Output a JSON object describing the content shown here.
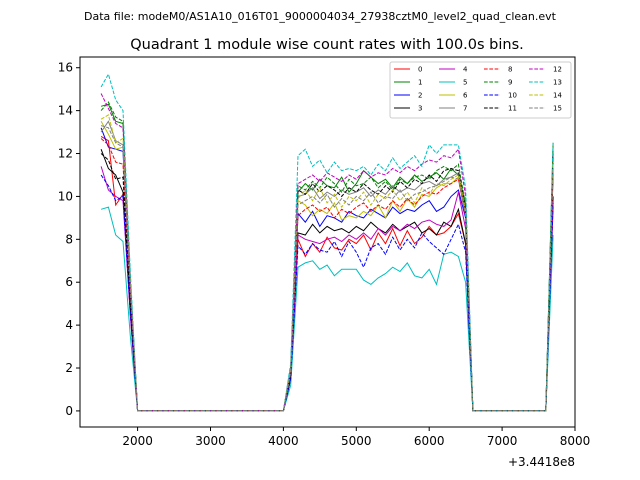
{
  "chart_data": {
    "type": "line",
    "suptitle": "Data file: modeM0/AS1A10_016T01_9000004034_27938cztM0_level2_quad_clean.evt",
    "title": "Quadrant 1 module wise count rates with 100.0s bins.",
    "xlabel": "",
    "ylabel": "",
    "x_offset_label": "+3.4418e8",
    "xlim": [
      1210,
      8000
    ],
    "ylim": [
      -0.75,
      16.5
    ],
    "xticks": [
      2000,
      3000,
      4000,
      5000,
      6000,
      7000,
      8000
    ],
    "yticks": [
      0,
      2,
      4,
      6,
      8,
      10,
      12,
      14,
      16
    ],
    "x": [
      1500,
      1600,
      1700,
      1800,
      1900,
      2000,
      2100,
      2200,
      2300,
      2400,
      2500,
      2600,
      2700,
      2800,
      2900,
      3000,
      3100,
      3200,
      3300,
      3400,
      3500,
      3600,
      3700,
      3800,
      3900,
      4000,
      4100,
      4200,
      4300,
      4400,
      4500,
      4600,
      4700,
      4800,
      4900,
      5000,
      5100,
      5200,
      5300,
      5400,
      5500,
      5600,
      5700,
      5800,
      5900,
      6000,
      6100,
      6200,
      6300,
      6400,
      6500,
      6600,
      6700,
      6800,
      6900,
      7000,
      7100,
      7200,
      7300,
      7400,
      7500,
      7600,
      7700
    ],
    "legend": {
      "placement": "top-right",
      "ncol": 4
    },
    "series": [
      {
        "name": "0",
        "color": "#ff0000",
        "dash": "solid",
        "values": [
          12.8,
          12.6,
          9.6,
          10.1,
          4.5,
          0,
          0,
          0,
          0,
          0,
          0,
          0,
          0,
          0,
          0,
          0,
          0,
          0,
          0,
          0,
          0,
          0,
          0,
          0,
          0,
          0,
          1.5,
          8.0,
          7.2,
          7.8,
          7.4,
          8.1,
          7.6,
          7.5,
          8.0,
          7.8,
          8.2,
          7.5,
          8.3,
          7.8,
          8.5,
          7.7,
          8.4,
          7.8,
          8.1,
          8.6,
          8.2,
          8.3,
          8.6,
          9.2,
          7.8,
          0,
          0,
          0,
          0,
          0,
          0,
          0,
          0,
          0,
          0,
          0,
          9.5
        ]
      },
      {
        "name": "1",
        "color": "#008000",
        "dash": "solid",
        "values": [
          14.2,
          14.3,
          13.5,
          13.4,
          6.0,
          0,
          0,
          0,
          0,
          0,
          0,
          0,
          0,
          0,
          0,
          0,
          0,
          0,
          0,
          0,
          0,
          0,
          0,
          0,
          0,
          0,
          2.0,
          10.2,
          10.6,
          10.3,
          10.8,
          10.5,
          10.4,
          10.9,
          10.2,
          10.6,
          11.2,
          10.9,
          10.6,
          10.8,
          10.4,
          10.9,
          10.6,
          11.0,
          10.7,
          10.9,
          11.1,
          10.8,
          11.3,
          11.0,
          9.6,
          0,
          0,
          0,
          0,
          0,
          0,
          0,
          0,
          0,
          0,
          0,
          12.5
        ]
      },
      {
        "name": "2",
        "color": "#0000ff",
        "dash": "solid",
        "values": [
          13.2,
          12.3,
          12.2,
          12.1,
          5.5,
          0,
          0,
          0,
          0,
          0,
          0,
          0,
          0,
          0,
          0,
          0,
          0,
          0,
          0,
          0,
          0,
          0,
          0,
          0,
          0,
          0,
          1.8,
          9.2,
          8.8,
          9.3,
          8.6,
          9.1,
          9.0,
          8.8,
          9.3,
          9.1,
          9.0,
          9.4,
          9.2,
          9.0,
          9.5,
          9.2,
          9.4,
          9.3,
          9.6,
          9.8,
          9.3,
          9.5,
          10.0,
          10.3,
          9.0,
          0,
          0,
          0,
          0,
          0,
          0,
          0,
          0,
          0,
          0,
          0,
          11.0
        ]
      },
      {
        "name": "3",
        "color": "#000000",
        "dash": "solid",
        "values": [
          12.2,
          11.3,
          11.0,
          10.2,
          4.7,
          0,
          0,
          0,
          0,
          0,
          0,
          0,
          0,
          0,
          0,
          0,
          0,
          0,
          0,
          0,
          0,
          0,
          0,
          0,
          0,
          0,
          1.5,
          8.3,
          8.2,
          8.7,
          8.3,
          8.6,
          8.4,
          8.5,
          8.3,
          8.6,
          8.4,
          8.8,
          8.5,
          8.3,
          8.7,
          8.4,
          8.6,
          8.8,
          8.3,
          8.5,
          8.2,
          8.8,
          8.6,
          9.4,
          7.8,
          0,
          0,
          0,
          0,
          0,
          0,
          0,
          0,
          0,
          0,
          0,
          10.0
        ]
      },
      {
        "name": "4",
        "color": "#c000c0",
        "dash": "solid",
        "values": [
          11.4,
          10.3,
          10.0,
          9.8,
          4.5,
          0,
          0,
          0,
          0,
          0,
          0,
          0,
          0,
          0,
          0,
          0,
          0,
          0,
          0,
          0,
          0,
          0,
          0,
          0,
          0,
          0,
          1.5,
          8.2,
          8.0,
          7.9,
          7.8,
          8.0,
          8.1,
          7.9,
          8.2,
          8.0,
          8.3,
          8.0,
          8.5,
          8.2,
          8.6,
          8.4,
          8.7,
          8.5,
          8.8,
          8.9,
          8.7,
          8.6,
          8.9,
          10.2,
          8.5,
          0,
          0,
          0,
          0,
          0,
          0,
          0,
          0,
          0,
          0,
          0,
          9.8
        ]
      },
      {
        "name": "5",
        "color": "#00bfbf",
        "dash": "solid",
        "values": [
          9.4,
          9.5,
          8.2,
          7.9,
          3.5,
          0,
          0,
          0,
          0,
          0,
          0,
          0,
          0,
          0,
          0,
          0,
          0,
          0,
          0,
          0,
          0,
          0,
          0,
          0,
          0,
          0,
          1.2,
          6.7,
          6.9,
          7.0,
          6.6,
          6.8,
          6.3,
          6.6,
          6.6,
          6.6,
          6.1,
          5.9,
          6.2,
          6.4,
          6.7,
          6.5,
          6.9,
          6.3,
          6.2,
          6.6,
          5.9,
          7.3,
          7.4,
          7.2,
          6.0,
          0,
          0,
          0,
          0,
          0,
          0,
          0,
          0,
          0,
          0,
          0,
          8.2
        ]
      },
      {
        "name": "6",
        "color": "#bfbf00",
        "dash": "solid",
        "values": [
          13.5,
          12.9,
          12.2,
          12.3,
          5.8,
          0,
          0,
          0,
          0,
          0,
          0,
          0,
          0,
          0,
          0,
          0,
          0,
          0,
          0,
          0,
          0,
          0,
          0,
          0,
          0,
          0,
          1.9,
          9.8,
          9.6,
          9.1,
          9.4,
          9.2,
          9.7,
          8.9,
          9.1,
          9.0,
          9.3,
          9.1,
          9.6,
          9.0,
          9.8,
          9.3,
          9.9,
          9.5,
          10.1,
          10.0,
          10.4,
          10.6,
          10.6,
          10.9,
          9.2,
          0,
          0,
          0,
          0,
          0,
          0,
          0,
          0,
          0,
          0,
          0,
          11.5
        ]
      },
      {
        "name": "7",
        "color": "#808080",
        "dash": "solid",
        "values": [
          13.0,
          13.5,
          12.6,
          12.4,
          5.6,
          0,
          0,
          0,
          0,
          0,
          0,
          0,
          0,
          0,
          0,
          0,
          0,
          0,
          0,
          0,
          0,
          0,
          0,
          0,
          0,
          0,
          1.9,
          10.0,
          10.1,
          10.4,
          9.9,
          10.2,
          10.0,
          10.3,
          10.1,
          10.2,
          10.4,
          10.0,
          10.3,
          10.1,
          10.5,
          10.2,
          10.4,
          10.3,
          10.6,
          10.7,
          10.5,
          10.8,
          10.9,
          11.1,
          9.3,
          0,
          0,
          0,
          0,
          0,
          0,
          0,
          0,
          0,
          0,
          0,
          11.8
        ]
      },
      {
        "name": "8",
        "color": "#ff0000",
        "dash": "dashed",
        "values": [
          12.7,
          12.4,
          11.6,
          11.5,
          5.2,
          0,
          0,
          0,
          0,
          0,
          0,
          0,
          0,
          0,
          0,
          0,
          0,
          0,
          0,
          0,
          0,
          0,
          0,
          0,
          0,
          0,
          1.7,
          9.1,
          9.4,
          9.6,
          9.3,
          9.5,
          9.0,
          9.4,
          9.2,
          9.5,
          9.7,
          9.3,
          9.6,
          9.4,
          9.8,
          9.5,
          9.9,
          9.6,
          10.0,
          10.2,
          10.1,
          10.4,
          10.6,
          10.8,
          9.1,
          0,
          0,
          0,
          0,
          0,
          0,
          0,
          0,
          0,
          0,
          0,
          11.2
        ]
      },
      {
        "name": "9",
        "color": "#008000",
        "dash": "dashed",
        "values": [
          14.0,
          14.4,
          13.7,
          13.5,
          6.1,
          0,
          0,
          0,
          0,
          0,
          0,
          0,
          0,
          0,
          0,
          0,
          0,
          0,
          0,
          0,
          0,
          0,
          0,
          0,
          0,
          0,
          2.0,
          10.5,
          10.3,
          10.7,
          10.4,
          10.9,
          10.6,
          10.2,
          10.8,
          10.5,
          10.6,
          10.9,
          10.4,
          10.7,
          10.3,
          10.8,
          10.6,
          10.9,
          11.0,
          10.8,
          11.2,
          11.4,
          11.2,
          11.5,
          9.6,
          0,
          0,
          0,
          0,
          0,
          0,
          0,
          0,
          0,
          0,
          0,
          12.3
        ]
      },
      {
        "name": "10",
        "color": "#0000ff",
        "dash": "dashed",
        "values": [
          11.0,
          10.5,
          9.8,
          10.0,
          4.6,
          0,
          0,
          0,
          0,
          0,
          0,
          0,
          0,
          0,
          0,
          0,
          0,
          0,
          0,
          0,
          0,
          0,
          0,
          0,
          0,
          0,
          1.5,
          7.7,
          7.3,
          7.8,
          7.5,
          7.4,
          7.9,
          7.2,
          7.9,
          7.4,
          6.7,
          7.6,
          7.8,
          7.3,
          8.1,
          7.5,
          8.0,
          7.6,
          8.3,
          7.9,
          7.6,
          7.3,
          8.0,
          8.7,
          7.4,
          0,
          0,
          0,
          0,
          0,
          0,
          0,
          0,
          0,
          0,
          0,
          9.7
        ]
      },
      {
        "name": "11",
        "color": "#000000",
        "dash": "dashed",
        "values": [
          12.0,
          11.7,
          10.8,
          10.9,
          5.0,
          0,
          0,
          0,
          0,
          0,
          0,
          0,
          0,
          0,
          0,
          0,
          0,
          0,
          0,
          0,
          0,
          0,
          0,
          0,
          0,
          0,
          1.7,
          10.3,
          10.1,
          10.6,
          10.2,
          10.5,
          10.3,
          10.0,
          10.4,
          10.2,
          10.6,
          10.3,
          10.1,
          10.5,
          10.2,
          10.7,
          10.4,
          10.8,
          10.6,
          11.0,
          10.7,
          11.2,
          11.3,
          11.2,
          9.4,
          0,
          0,
          0,
          0,
          0,
          0,
          0,
          0,
          0,
          0,
          0,
          12.0
        ]
      },
      {
        "name": "12",
        "color": "#c000c0",
        "dash": "dashed",
        "values": [
          14.8,
          14.1,
          13.4,
          13.2,
          6.0,
          0,
          0,
          0,
          0,
          0,
          0,
          0,
          0,
          0,
          0,
          0,
          0,
          0,
          0,
          0,
          0,
          0,
          0,
          0,
          0,
          0,
          2.0,
          10.6,
          10.8,
          11.0,
          10.7,
          11.1,
          10.9,
          10.7,
          11.0,
          10.8,
          11.2,
          10.9,
          11.1,
          11.0,
          11.3,
          11.1,
          11.4,
          11.2,
          11.5,
          11.7,
          11.6,
          11.9,
          11.8,
          12.2,
          10.0,
          0,
          0,
          0,
          0,
          0,
          0,
          0,
          0,
          0,
          0,
          0,
          12.0
        ]
      },
      {
        "name": "13",
        "color": "#00bfbf",
        "dash": "dashed",
        "values": [
          15.1,
          15.7,
          14.5,
          14.0,
          6.5,
          0,
          0,
          0,
          0,
          0,
          0,
          0,
          0,
          0,
          0,
          0,
          0,
          0,
          0,
          0,
          0,
          0,
          0,
          0,
          0,
          0,
          2.2,
          11.9,
          12.2,
          11.4,
          11.7,
          11.1,
          11.6,
          11.2,
          11.3,
          11.2,
          11.4,
          11.0,
          11.5,
          11.2,
          11.8,
          11.3,
          11.6,
          11.9,
          11.4,
          12.4,
          12.0,
          12.4,
          12.4,
          12.4,
          10.4,
          0,
          0,
          0,
          0,
          0,
          0,
          0,
          0,
          0,
          0,
          0,
          12.5
        ]
      },
      {
        "name": "14",
        "color": "#bfbf00",
        "dash": "dashed",
        "values": [
          13.6,
          13.8,
          12.5,
          12.7,
          5.9,
          0,
          0,
          0,
          0,
          0,
          0,
          0,
          0,
          0,
          0,
          0,
          0,
          0,
          0,
          0,
          0,
          0,
          0,
          0,
          0,
          0,
          1.9,
          9.9,
          10.3,
          9.8,
          10.4,
          9.7,
          10.1,
          9.5,
          10.0,
          9.8,
          10.2,
          9.6,
          10.1,
          9.9,
          10.3,
          9.8,
          10.2,
          9.7,
          10.4,
          10.1,
          10.6,
          10.5,
          10.8,
          11.0,
          9.3,
          0,
          0,
          0,
          0,
          0,
          0,
          0,
          0,
          0,
          0,
          0,
          11.6
        ]
      },
      {
        "name": "15",
        "color": "#808080",
        "dash": "dashed",
        "values": [
          13.3,
          13.2,
          12.5,
          12.3,
          5.7,
          0,
          0,
          0,
          0,
          0,
          0,
          0,
          0,
          0,
          0,
          0,
          0,
          0,
          0,
          0,
          0,
          0,
          0,
          0,
          0,
          0,
          1.8,
          9.6,
          9.8,
          10.0,
          9.7,
          10.1,
          9.5,
          9.9,
          9.6,
          10.0,
          9.8,
          10.2,
          9.7,
          10.0,
          9.9,
          10.3,
          9.8,
          10.1,
          10.2,
          10.4,
          10.5,
          10.7,
          10.9,
          10.8,
          9.1,
          0,
          0,
          0,
          0,
          0,
          0,
          0,
          0,
          0,
          0,
          0,
          11.3
        ]
      }
    ]
  }
}
